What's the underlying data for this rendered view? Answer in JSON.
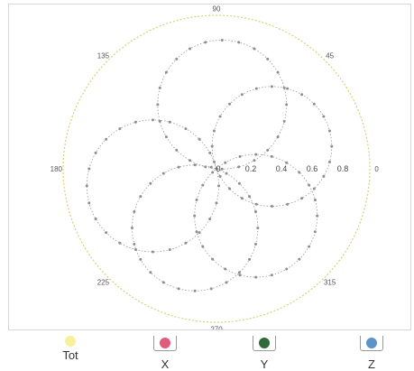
{
  "chart_data": {
    "type": "scatter",
    "projection": "polar",
    "angle_ticks": [
      "90",
      "45",
      "0",
      "315",
      "270",
      "225",
      "180",
      "135"
    ],
    "angle_tick_degrees": [
      90,
      45,
      0,
      315,
      270,
      225,
      180,
      135
    ],
    "radial_ticks": [
      "0.2",
      "0.4",
      "0.6",
      "0.8"
    ],
    "radial_tick_values": [
      0.2,
      0.4,
      0.6,
      0.8
    ],
    "rlim": [
      0,
      1
    ],
    "center_label": "0",
    "legend_position": "bottom",
    "colors": {
      "tot": "#f3ef9a",
      "x": "#e15c7a",
      "y": "#2f6b3a",
      "z": "#5d93c9",
      "markers": "#8e8e8e",
      "outline": "#d9d07a"
    },
    "series": [
      {
        "name": "Tot",
        "lobes": []
      },
      {
        "name": "X",
        "lobes": []
      },
      {
        "name": "Y",
        "lobes": []
      },
      {
        "name": "Z",
        "lobes": []
      }
    ],
    "petal_lobes": [
      {
        "direction_deg": 85,
        "radius": 0.84
      },
      {
        "direction_deg": 22,
        "radius": 0.78
      },
      {
        "direction_deg": 310,
        "radius": 0.8
      },
      {
        "direction_deg": 250,
        "radius": 0.82
      },
      {
        "direction_deg": 195,
        "radius": 0.86
      }
    ],
    "points_per_lobe": 24
  },
  "legend": {
    "items": [
      {
        "label": "Tot",
        "color": "#f6f29b",
        "boxed": false
      },
      {
        "label": "X",
        "color": "#e15c7a",
        "boxed": true
      },
      {
        "label": "Y",
        "color": "#2f6b3a",
        "boxed": true
      },
      {
        "label": "Z",
        "color": "#5d93c9",
        "boxed": true
      }
    ]
  }
}
